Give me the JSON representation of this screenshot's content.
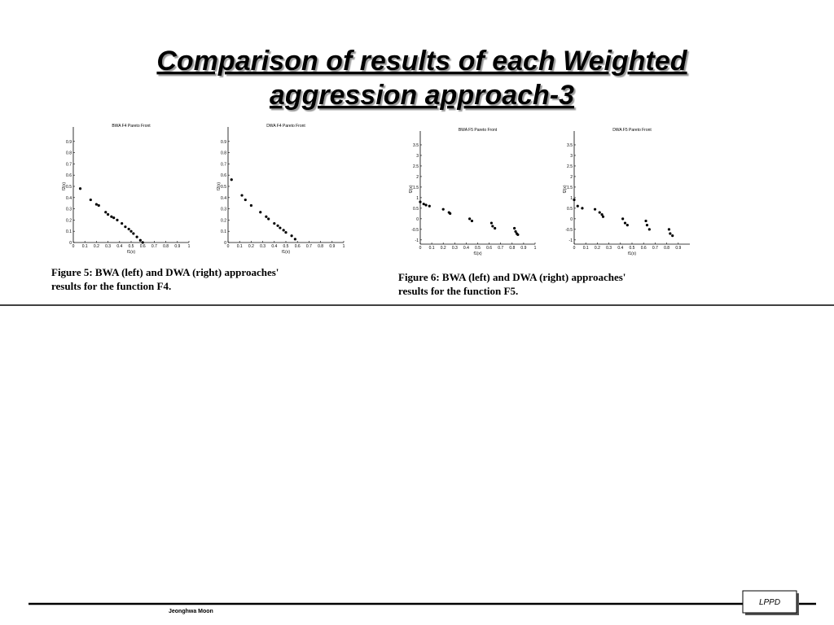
{
  "title": [
    "Comparison of results of each Weighted",
    "aggression approach-3"
  ],
  "chart_data": [
    {
      "type": "scatter",
      "title": "BWA F4 Pareto Front",
      "x_label": "f1(x)",
      "y_label": "f2(x)",
      "color": "#000000",
      "x": [
        0.06,
        0.15,
        0.2,
        0.22,
        0.28,
        0.3,
        0.33,
        0.35,
        0.38,
        0.42,
        0.45,
        0.48,
        0.5,
        0.52,
        0.55,
        0.58,
        0.6
      ],
      "values": [
        0.48,
        0.38,
        0.34,
        0.33,
        0.27,
        0.25,
        0.23,
        0.22,
        0.2,
        0.17,
        0.14,
        0.12,
        0.1,
        0.08,
        0.05,
        0.02,
        0
      ],
      "xlim": [
        0,
        1
      ],
      "xticks": [
        0,
        0.1,
        0.2,
        0.3,
        0.4,
        0.5,
        0.6,
        0.7,
        0.8,
        0.9,
        1
      ],
      "ylim": [
        0,
        1
      ],
      "yticks": [
        0,
        0.1,
        0.2,
        0.3,
        0.4,
        0.5,
        0.6,
        0.7,
        0.8,
        0.9
      ]
    },
    {
      "type": "scatter",
      "title": "DWA F4 Pareto Front",
      "x_label": "f1(x)",
      "y_label": "f2(x)",
      "color": "#000000",
      "x": [
        0.03,
        0.12,
        0.15,
        0.2,
        0.28,
        0.33,
        0.35,
        0.4,
        0.43,
        0.45,
        0.48,
        0.5,
        0.55,
        0.58
      ],
      "values": [
        0.56,
        0.42,
        0.38,
        0.33,
        0.27,
        0.23,
        0.21,
        0.17,
        0.15,
        0.13,
        0.11,
        0.09,
        0.06,
        0.03
      ],
      "xlim": [
        0,
        1
      ],
      "xticks": [
        0,
        0.1,
        0.2,
        0.3,
        0.4,
        0.5,
        0.6,
        0.7,
        0.8,
        0.9,
        1
      ],
      "ylim": [
        0,
        1
      ],
      "yticks": [
        0,
        0.1,
        0.2,
        0.3,
        0.4,
        0.5,
        0.6,
        0.7,
        0.8,
        0.9
      ]
    },
    {
      "type": "scatter",
      "title": "BWA F5 Pareto Front",
      "x_label": "f1(x)",
      "y_label": "f2(x)",
      "color": "#000000",
      "x": [
        0,
        0.03,
        0.05,
        0.08,
        0.2,
        0.25,
        0.26,
        0.43,
        0.45,
        0.62,
        0.63,
        0.65,
        0.82,
        0.83,
        0.84,
        0.85
      ],
      "values": [
        0.8,
        0.7,
        0.65,
        0.6,
        0.45,
        0.3,
        0.25,
        0,
        -0.1,
        -0.2,
        -0.35,
        -0.45,
        -0.45,
        -0.6,
        -0.7,
        -0.75
      ],
      "xlim": [
        0,
        1
      ],
      "xticks": [
        0,
        0.1,
        0.2,
        0.3,
        0.4,
        0.5,
        0.6,
        0.7,
        0.8,
        0.9,
        1
      ],
      "ylim": [
        -1.2,
        4
      ],
      "yticks": [
        -1,
        -0.5,
        0,
        0.5,
        1,
        1.5,
        2,
        2.5,
        3,
        3.5
      ]
    },
    {
      "type": "scatter",
      "title": "DWA F5 Pareto Front",
      "x_label": "f1(x)",
      "y_label": "f2(x)",
      "color": "#000000",
      "x": [
        0,
        0.03,
        0.07,
        0.18,
        0.22,
        0.24,
        0.25,
        0.42,
        0.44,
        0.46,
        0.62,
        0.63,
        0.65,
        0.82,
        0.83,
        0.85
      ],
      "values": [
        0.9,
        0.6,
        0.5,
        0.45,
        0.3,
        0.2,
        0.1,
        0,
        -0.2,
        -0.3,
        -0.1,
        -0.3,
        -0.5,
        -0.5,
        -0.7,
        -0.8
      ],
      "xlim": [
        0,
        1
      ],
      "xticks": [
        0,
        0.1,
        0.2,
        0.3,
        0.4,
        0.5,
        0.6,
        0.7,
        0.8,
        0.9
      ],
      "ylim": [
        -1.2,
        4
      ],
      "yticks": [
        -1,
        -0.5,
        0,
        0.5,
        1,
        1.5,
        2,
        2.5,
        3,
        3.5
      ]
    }
  ],
  "captions": [
    [
      "Figure 5: BWA (left) and DWA (right) approaches'",
      "results for the function F4."
    ],
    [
      "Figure 6: BWA (left) and DWA (right) approaches'",
      "results for the function F5."
    ]
  ],
  "footer": {
    "author": "Jeonghwa Moon",
    "logo": "LPPD"
  }
}
